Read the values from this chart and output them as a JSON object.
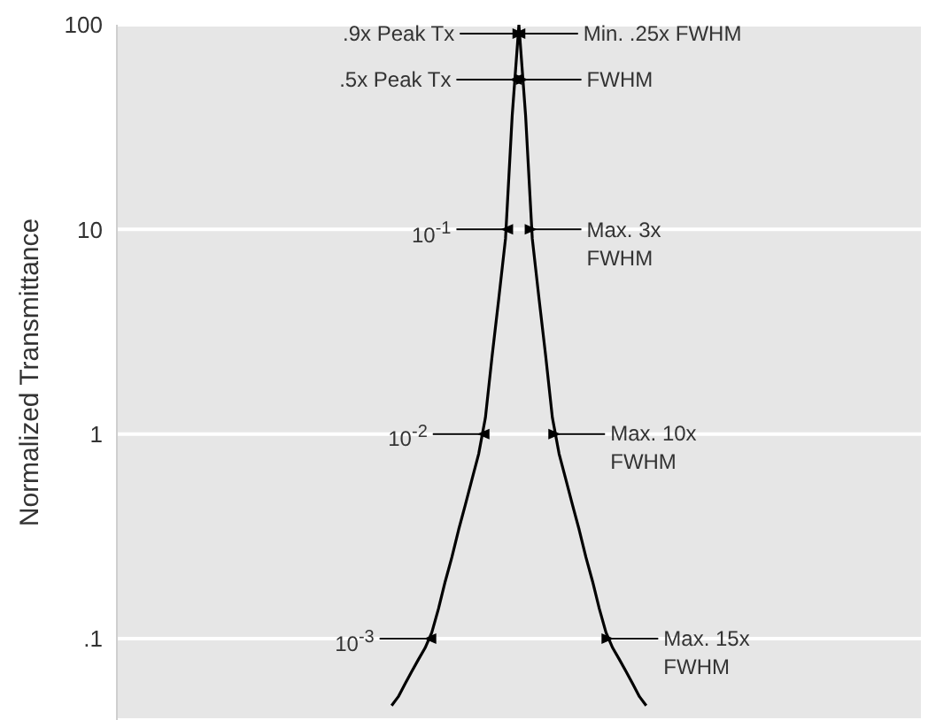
{
  "chart_data": {
    "type": "line",
    "ylabel": "Normalized Transmittance",
    "log": "y",
    "grid": "y",
    "tick_labels": "y",
    "ylim": [
      0.04,
      100
    ],
    "yticks": [
      {
        "value": 0.1,
        "label": ".1"
      },
      1,
      10,
      100
    ],
    "categories": [
      null,
      null,
      null,
      null,
      null,
      null,
      null,
      null,
      null,
      null,
      null,
      null,
      null,
      null,
      null,
      null,
      null,
      null,
      null,
      null,
      null,
      null,
      null,
      null,
      null,
      null,
      null,
      null,
      null,
      null,
      null,
      null,
      null,
      null,
      null,
      null,
      null,
      null,
      null,
      null,
      null,
      null,
      null,
      null,
      null,
      null,
      null,
      null,
      null,
      null,
      null,
      null,
      null,
      null,
      null,
      null,
      null,
      null,
      null,
      null,
      null,
      null,
      null,
      null,
      null,
      null,
      null,
      null,
      null,
      null,
      null,
      null,
      null,
      null,
      null,
      null,
      null,
      null,
      null,
      null,
      null,
      null,
      null,
      null,
      null,
      null,
      null,
      null,
      null,
      null,
      null,
      null,
      null,
      null,
      null,
      null,
      null,
      null,
      null,
      null,
      null,
      null,
      null,
      null,
      null,
      null,
      null,
      null,
      null,
      null,
      null,
      null,
      null,
      null,
      null,
      null,
      null,
      null,
      null,
      null,
      null
    ],
    "values": [
      null,
      null,
      null,
      null,
      null,
      null,
      null,
      null,
      null,
      null,
      null,
      null,
      null,
      null,
      null,
      null,
      null,
      null,
      null,
      null,
      null,
      null,
      null,
      null,
      null,
      null,
      null,
      null,
      null,
      null,
      null,
      null,
      null,
      null,
      null,
      null,
      null,
      null,
      null,
      null,
      null,
      0.047,
      0.052,
      0.06,
      0.069,
      0.079,
      0.09,
      0.107,
      0.14,
      0.19,
      0.25,
      0.34,
      0.45,
      0.6,
      0.8,
      1.2,
      2.4,
      4.6,
      9,
      36,
      100,
      36,
      9,
      4.6,
      2.4,
      1.2,
      0.8,
      0.6,
      0.45,
      0.34,
      0.25,
      0.19,
      0.14,
      0.107,
      0.09,
      0.079,
      0.069,
      0.06,
      0.052,
      0.047,
      null,
      null,
      null,
      null,
      null,
      null,
      null,
      null,
      null,
      null,
      null,
      null,
      null,
      null,
      null,
      null,
      null,
      null,
      null,
      null,
      null,
      null,
      null,
      null,
      null,
      null,
      null,
      null,
      null,
      null,
      null,
      null,
      null,
      null,
      null,
      null,
      null,
      null,
      null,
      null,
      null
    ],
    "color": "#000000",
    "annotations": [
      ".9x Peak Tx",
      "Min. .25x FWHM",
      ".5x Peak Tx",
      "FWHM",
      "10$^{-1}$",
      "Max. 3x FWHM",
      "10$^{-2}$",
      "Max. 10x FWHM",
      "10$^{-3}$",
      "Max. 15x FWHM"
    ]
  }
}
